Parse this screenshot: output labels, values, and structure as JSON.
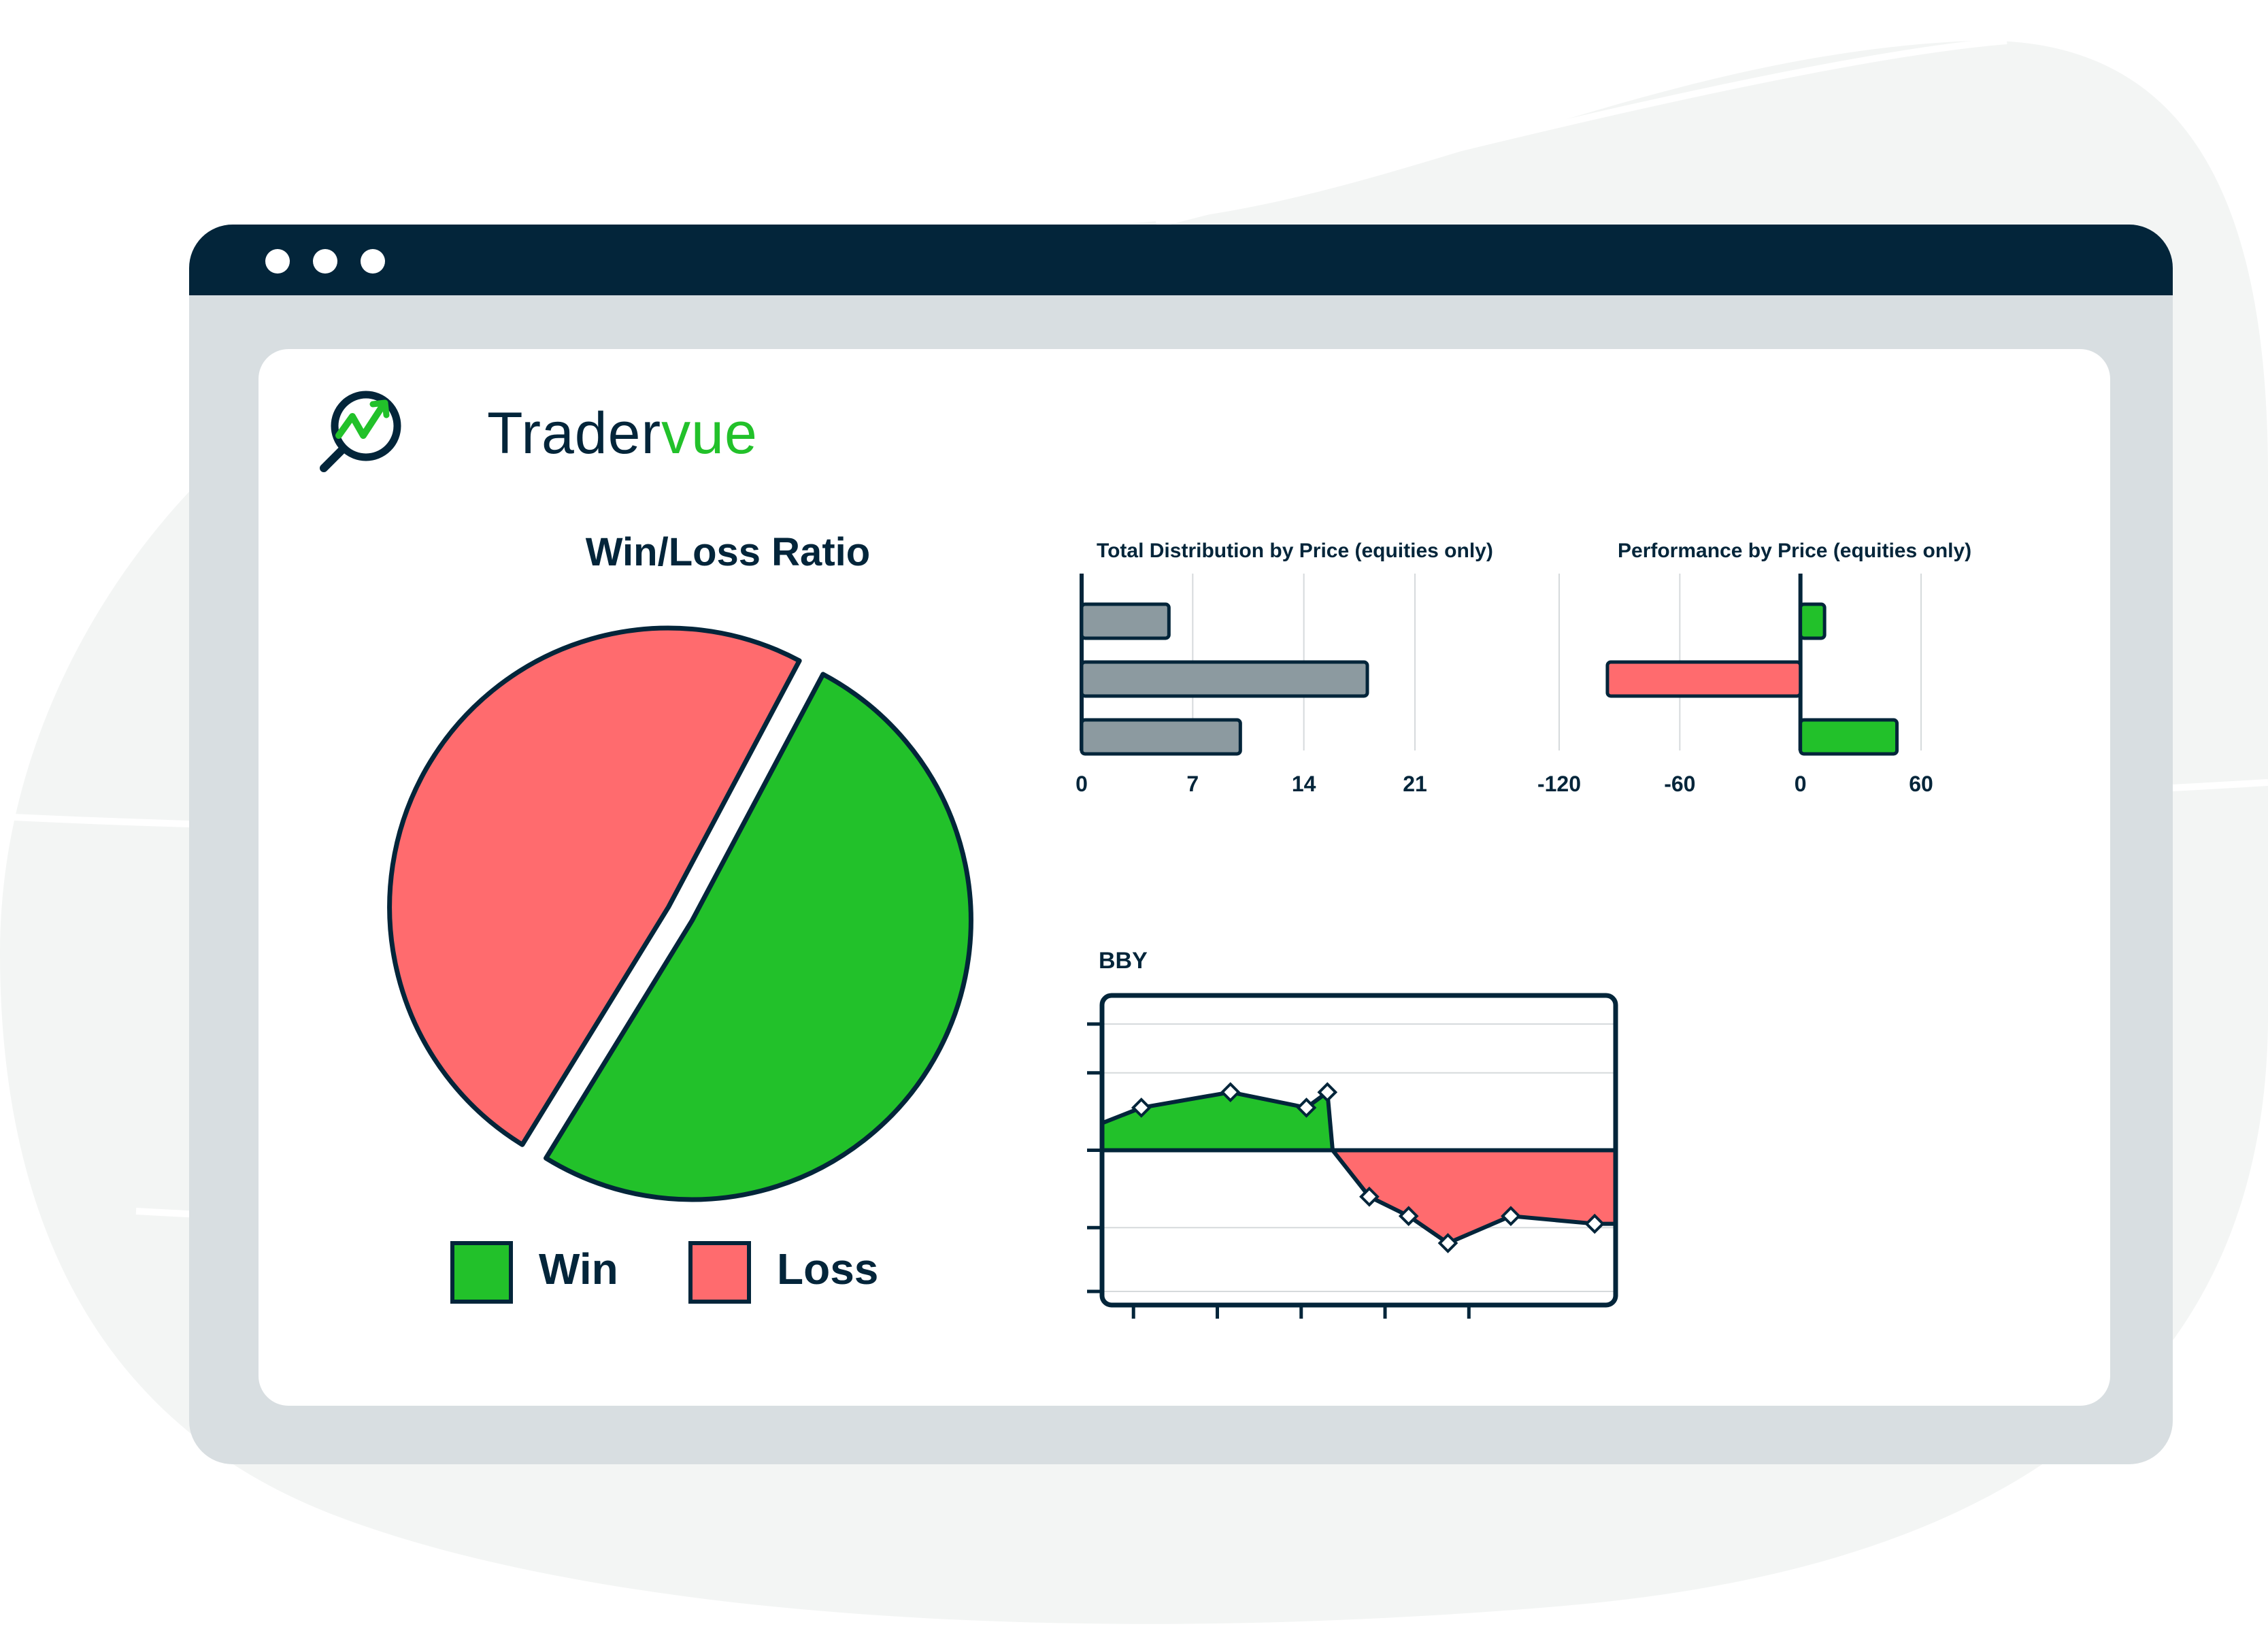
{
  "window": {
    "controls": [
      "close",
      "minimize",
      "maximize"
    ]
  },
  "logo": {
    "text_main": "Trader",
    "text_accent": "vue",
    "icon": "magnifier-chart-icon"
  },
  "colors": {
    "dark": "#03253a",
    "win": "#22c12a",
    "loss": "#ff6b6e",
    "neutral": "#8c9aa0",
    "frame": "#d8dee1"
  },
  "chart_data": [
    {
      "type": "pie",
      "title": "Win/Loss Ratio",
      "slices": [
        {
          "label": "Win",
          "value": 51,
          "color": "#22c12a"
        },
        {
          "label": "Loss",
          "value": 49,
          "color": "#ff6b6e"
        }
      ],
      "legend": [
        "Win",
        "Loss"
      ],
      "legend_position": "bottom"
    },
    {
      "type": "bar",
      "orientation": "horizontal",
      "title": "Total Distribution by Price (equities only)",
      "categories": [
        "",
        "",
        ""
      ],
      "values": [
        5.5,
        18,
        10
      ],
      "xlim": [
        0,
        21
      ],
      "xticks": [
        "0",
        "7",
        "14",
        "21"
      ],
      "grid": true,
      "color": "#8c9aa0"
    },
    {
      "type": "bar",
      "orientation": "horizontal",
      "title": "Performance by Price (equities only)",
      "categories": [
        "",
        "",
        ""
      ],
      "values": [
        12,
        -96,
        48
      ],
      "xlim": [
        -120,
        60
      ],
      "xticks": [
        "-120",
        "-60",
        "0",
        "60"
      ],
      "grid": true,
      "positive_color": "#22c12a",
      "negative_color": "#ff6b6e"
    },
    {
      "type": "area",
      "title": "BBY",
      "x": [
        0,
        0.75,
        2.45,
        3.9,
        4.3,
        5.1,
        5.85,
        6.6,
        7.8,
        9.4,
        9.8
      ],
      "y": [
        0.35,
        0.55,
        0.75,
        0.55,
        0.75,
        -0.6,
        -0.85,
        -1.2,
        -0.85,
        -0.95,
        -0.95
      ],
      "zero_crossing_x": 4.4,
      "ylim": [
        -2,
        2
      ],
      "baseline": 0,
      "markers_at": [
        0.75,
        2.45,
        3.9,
        4.3,
        5.1,
        5.85,
        6.6,
        7.8,
        9.4
      ],
      "grid": true
    }
  ]
}
